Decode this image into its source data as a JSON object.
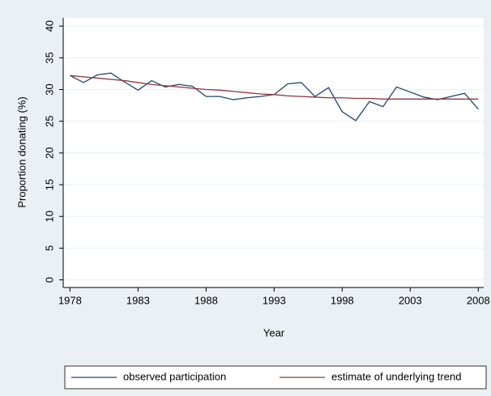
{
  "chart_data": {
    "type": "line",
    "x_label": "Year",
    "y_label": "Proportion donating (%)",
    "x": [
      1978,
      1979,
      1980,
      1981,
      1982,
      1983,
      1984,
      1985,
      1986,
      1987,
      1988,
      1989,
      1990,
      1991,
      1992,
      1993,
      1994,
      1995,
      1996,
      1997,
      1998,
      1999,
      2000,
      2001,
      2002,
      2003,
      2004,
      2005,
      2006,
      2007,
      2008
    ],
    "series": [
      {
        "name": "observed participation",
        "color": "#1a476f",
        "values": [
          32.2,
          31.1,
          32.3,
          32.6,
          31.2,
          29.9,
          31.4,
          30.4,
          30.8,
          30.5,
          28.9,
          28.9,
          28.4,
          28.7,
          28.9,
          29.2,
          30.9,
          31.1,
          28.9,
          30.3,
          26.5,
          25.1,
          28.1,
          27.3,
          30.4,
          29.6,
          28.8,
          28.4,
          28.9,
          29.4,
          26.9
        ]
      },
      {
        "name": "estimate of underlying trend",
        "color": "#90353b",
        "values": [
          32.2,
          32.0,
          31.8,
          31.6,
          31.4,
          31.1,
          30.8,
          30.6,
          30.4,
          30.2,
          30.0,
          29.9,
          29.7,
          29.5,
          29.3,
          29.2,
          29.0,
          28.9,
          28.8,
          28.7,
          28.7,
          28.6,
          28.6,
          28.5,
          28.5,
          28.5,
          28.5,
          28.5,
          28.5,
          28.5,
          28.5
        ]
      }
    ],
    "xlim": [
      1977.5,
      2008.4
    ],
    "xticks": [
      1978,
      1983,
      1988,
      1993,
      1998,
      2003,
      2008
    ],
    "ylim": [
      -1.2,
      41.3
    ],
    "yticks": [
      0,
      5,
      10,
      15,
      20,
      25,
      30,
      35,
      40
    ],
    "grid": true,
    "legend": "bottom"
  }
}
